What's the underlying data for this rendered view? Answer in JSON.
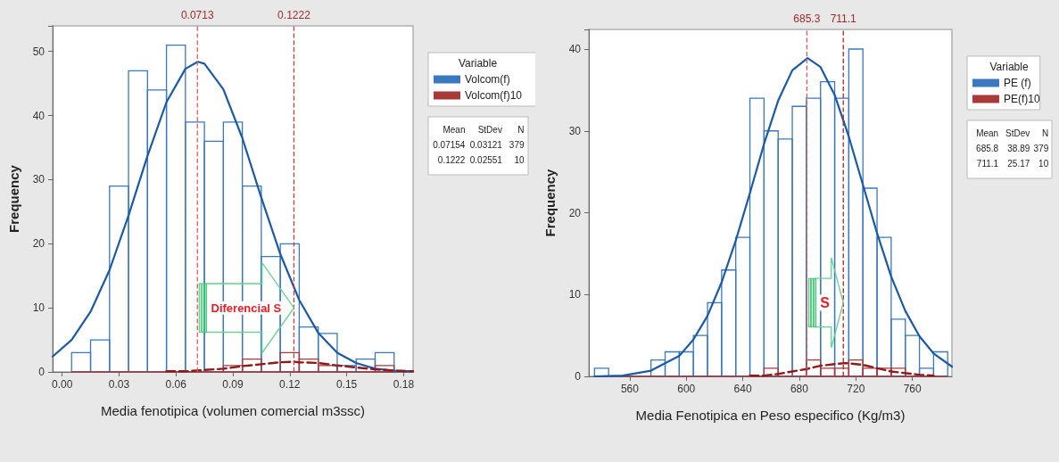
{
  "chart_data": [
    {
      "type": "histogram",
      "xlabel": "Media fenotipica (volumen comercial m3ssc)",
      "ylabel": "Frequency",
      "legend_title": "Variable",
      "legend": "right",
      "bins": [
        0.005,
        0.015,
        0.025,
        0.035,
        0.045,
        0.055,
        0.065,
        0.075,
        0.085,
        0.095,
        0.105,
        0.115,
        0.125,
        0.135,
        0.145,
        0.155,
        0.165,
        0.175
      ],
      "series": [
        {
          "name": "Volcom(f)",
          "color": "#3a78c0",
          "values": [
            3,
            5,
            29,
            47,
            44,
            51,
            39,
            36,
            39,
            29,
            18,
            20,
            7,
            6,
            1,
            2,
            3
          ]
        },
        {
          "name": "Volcom(f)10",
          "color": "#a83a3a",
          "values": [
            0,
            0,
            0,
            0,
            0,
            0,
            0,
            0,
            1,
            2,
            0,
            3,
            2,
            1,
            0,
            0,
            1
          ]
        },
        {
          "type": "line",
          "color": "#1a5aa6",
          "x": [
            -0.005,
            0.005,
            0.015,
            0.025,
            0.035,
            0.045,
            0.055,
            0.065,
            0.0715,
            0.075,
            0.085,
            0.095,
            0.105,
            0.115,
            0.125,
            0.135,
            0.145,
            0.155,
            0.165,
            0.175,
            0.185
          ],
          "values": [
            2.4,
            5.0,
            9.4,
            15.9,
            24.4,
            33.7,
            42.1,
            47.3,
            48.4,
            48.1,
            44.1,
            36.5,
            27.2,
            18.4,
            11.2,
            6.1,
            3.0,
            1.4,
            0.5,
            0.2,
            0.1
          ]
        },
        {
          "type": "line",
          "color": "#8e1a1a",
          "line_style": "dashed",
          "x": [
            0.055,
            0.065,
            0.075,
            0.085,
            0.095,
            0.105,
            0.115,
            0.1222,
            0.125,
            0.135,
            0.145,
            0.155,
            0.165,
            0.175,
            0.185
          ],
          "values": [
            0.1,
            0.1,
            0.3,
            0.5,
            0.9,
            1.2,
            1.5,
            1.6,
            1.5,
            1.4,
            1.0,
            0.7,
            0.4,
            0.2,
            0.1
          ]
        }
      ],
      "xlim": [
        -0.005,
        0.185
      ],
      "xticks": [
        {
          "value": 0,
          "label": "0.00"
        },
        {
          "value": 0.03,
          "label": "0.03"
        },
        {
          "value": 0.06,
          "label": "0.06"
        },
        {
          "value": 0.09,
          "label": "0.09"
        },
        {
          "value": 0.12,
          "label": "0.12"
        },
        {
          "value": 0.15,
          "label": "0.15"
        },
        {
          "value": 0.18,
          "label": "0.18"
        }
      ],
      "ylim": [
        0,
        54
      ],
      "yticks": [
        0,
        10,
        20,
        30,
        40,
        50
      ],
      "ref_lines": [
        {
          "axis": "x",
          "value": 0.0713,
          "label": "0.0713",
          "color": "#e8575c",
          "line_style": "dashed"
        },
        {
          "axis": "x",
          "value": 0.1222,
          "label": "0.1222",
          "color": "#d43a3a",
          "line_style": "dashed"
        }
      ],
      "annotations": [
        {
          "text": "Diferencial S",
          "x": 0.097,
          "y": 10
        },
        "Mean",
        "StDev",
        "N",
        "0.07154",
        "0.03121",
        "379",
        "0.1222",
        "0.02551",
        "10"
      ]
    },
    {
      "type": "histogram",
      "xlabel": "Media Fenotipica en Peso especifico (Kg/m3)",
      "ylabel": "Frequency",
      "legend_title": "Variable",
      "legend": "right",
      "bins": [
        535,
        545,
        555,
        565,
        575,
        585,
        595,
        605,
        615,
        625,
        635,
        645,
        655,
        665,
        675,
        685,
        695,
        705,
        715,
        725,
        735,
        745,
        755,
        765,
        775,
        785
      ],
      "series": [
        {
          "name": "PE (f)",
          "color": "#3a78c0",
          "values": [
            1,
            0,
            0,
            0,
            2,
            3,
            3,
            5,
            9,
            13,
            17,
            34,
            30,
            29,
            33,
            34,
            36,
            34,
            40,
            23,
            17,
            7,
            5,
            1,
            3
          ]
        },
        {
          "name": "PE(f)10",
          "color": "#a83a3a",
          "values": [
            0,
            0,
            0,
            0,
            0,
            0,
            0,
            0,
            0,
            0,
            0,
            0,
            1,
            0,
            0,
            2,
            1,
            1,
            2,
            1,
            1,
            1,
            0,
            0,
            0
          ]
        },
        {
          "type": "line",
          "color": "#1a5aa6",
          "x": [
            535,
            555,
            575,
            595,
            605,
            615,
            625,
            635,
            645,
            655,
            665,
            675,
            685.8,
            695,
            705,
            715,
            725,
            735,
            745,
            755,
            765,
            775,
            788
          ],
          "values": [
            0.0,
            0.1,
            0.7,
            2.5,
            4.5,
            7.4,
            11.5,
            16.6,
            22.4,
            28.4,
            33.7,
            37.4,
            38.9,
            37.8,
            34.4,
            29.3,
            23.4,
            17.5,
            12.2,
            8.0,
            4.9,
            2.8,
            1.2
          ]
        },
        {
          "type": "line",
          "color": "#8e1a1a",
          "line_style": "dashed",
          "x": [
            645,
            655,
            665,
            675,
            685,
            695,
            705,
            711.1,
            715,
            725,
            735,
            745,
            755,
            765,
            775
          ],
          "values": [
            0.1,
            0.1,
            0.3,
            0.6,
            0.9,
            1.3,
            1.5,
            1.6,
            1.6,
            1.4,
            1.0,
            0.6,
            0.4,
            0.2,
            0.1
          ]
        }
      ],
      "xlim": [
        531,
        788
      ],
      "xticks": [
        560,
        600,
        640,
        680,
        720,
        760
      ],
      "ylim": [
        0,
        42.4
      ],
      "yticks": [
        0,
        10,
        20,
        30,
        40
      ],
      "ref_lines": [
        {
          "axis": "x",
          "value": 685.3,
          "label": "685.3",
          "color": "#e8575c",
          "line_style": "dashed"
        },
        {
          "axis": "x",
          "value": 711.1,
          "label": "711.1",
          "color": "#b02222",
          "line_style": "dashed"
        }
      ],
      "annotations": [
        {
          "text": "S",
          "x": 698,
          "y": 9
        },
        "Mean",
        "StDev",
        "N",
        "685.8",
        "38.89",
        "379",
        "711.1",
        "25.17",
        "10"
      ]
    }
  ]
}
